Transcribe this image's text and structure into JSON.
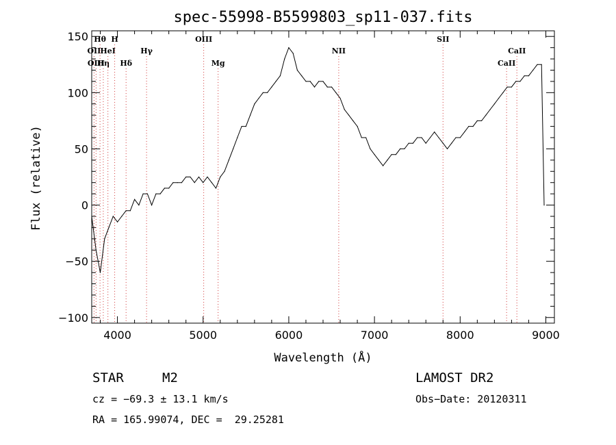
{
  "chart_data": {
    "type": "line",
    "title": "spec-55998-B5599803_sp11-037.fits",
    "xlabel": "Wavelength (Å)",
    "ylabel": "Flux (relative)",
    "xlim": [
      3700,
      9100
    ],
    "ylim": [
      -105,
      155
    ],
    "xticks": [
      4000,
      5000,
      6000,
      7000,
      8000,
      9000
    ],
    "yticks": [
      -100,
      -50,
      0,
      50,
      100,
      150
    ],
    "yticklabels": [
      "−100",
      "−50",
      "0",
      "50",
      "100",
      "150"
    ],
    "grid": false,
    "series": [
      {
        "x": [
          3700,
          3750,
          3800,
          3850,
          3900,
          3950,
          4000,
          4050,
          4100,
          4150,
          4200,
          4250,
          4300,
          4350,
          4400,
          4450,
          4500,
          4550,
          4600,
          4650,
          4700,
          4750,
          4800,
          4850,
          4900,
          4950,
          5000,
          5050,
          5100,
          5150,
          5200,
          5250,
          5300,
          5350,
          5400,
          5450,
          5500,
          5550,
          5600,
          5650,
          5700,
          5750,
          5800,
          5850,
          5900,
          5950,
          6000,
          6050,
          6100,
          6150,
          6200,
          6250,
          6300,
          6350,
          6400,
          6450,
          6500,
          6550,
          6600,
          6650,
          6700,
          6750,
          6800,
          6850,
          6900,
          6950,
          7000,
          7050,
          7100,
          7150,
          7200,
          7250,
          7300,
          7350,
          7400,
          7450,
          7500,
          7550,
          7600,
          7650,
          7700,
          7750,
          7800,
          7850,
          7900,
          7950,
          8000,
          8050,
          8100,
          8150,
          8200,
          8250,
          8300,
          8350,
          8400,
          8450,
          8500,
          8550,
          8600,
          8650,
          8700,
          8750,
          8800,
          8850,
          8900,
          8950,
          8980
        ],
        "y": [
          -10,
          -40,
          -60,
          -30,
          -20,
          -10,
          -15,
          -10,
          -5,
          -5,
          5,
          0,
          10,
          10,
          0,
          10,
          10,
          15,
          15,
          20,
          20,
          20,
          25,
          25,
          20,
          25,
          20,
          25,
          20,
          15,
          25,
          30,
          40,
          50,
          60,
          70,
          70,
          80,
          90,
          95,
          100,
          100,
          105,
          110,
          115,
          130,
          140,
          135,
          120,
          115,
          110,
          110,
          105,
          110,
          110,
          105,
          105,
          100,
          95,
          85,
          80,
          75,
          70,
          60,
          60,
          50,
          45,
          40,
          35,
          40,
          45,
          45,
          50,
          50,
          55,
          55,
          60,
          60,
          55,
          60,
          65,
          60,
          55,
          50,
          55,
          60,
          60,
          65,
          70,
          70,
          75,
          75,
          80,
          85,
          90,
          95,
          100,
          105,
          105,
          110,
          110,
          115,
          115,
          120,
          125,
          125,
          0
        ]
      }
    ],
    "emission_lines": [
      {
        "label": "OII",
        "wavelength": 3727,
        "row": 1
      },
      {
        "label": "Hθ",
        "wavelength": 3797,
        "row": 0
      },
      {
        "label": "OIII",
        "wavelength": 3751,
        "row": 2
      },
      {
        "label": "Hη",
        "wavelength": 3835,
        "row": 2
      },
      {
        "label": "HeI",
        "wavelength": 3889,
        "row": 1
      },
      {
        "label": "H",
        "wavelength": 3968,
        "row": 0
      },
      {
        "label": "Hδ",
        "wavelength": 4101,
        "row": 2
      },
      {
        "label": "Hγ",
        "wavelength": 4340,
        "row": 1
      },
      {
        "label": "OIII",
        "wavelength": 5007,
        "row": 0
      },
      {
        "label": "Mg",
        "wavelength": 5175,
        "row": 2
      },
      {
        "label": "NII",
        "wavelength": 6583,
        "row": 1
      },
      {
        "label": "SII",
        "wavelength": 7800,
        "row": 0
      },
      {
        "label": "CaII",
        "wavelength": 8542,
        "row": 2
      },
      {
        "label": "CaII",
        "wavelength": 8662,
        "row": 1
      }
    ]
  },
  "info": {
    "class_label": "STAR",
    "subclass": "M2",
    "survey": "LAMOST DR2",
    "cz": "cz = −69.3 ± 13.1 km/s",
    "obs_date": "Obs−Date: 20120311",
    "radec": "RA = 165.99074, DEC =  29.25281"
  }
}
